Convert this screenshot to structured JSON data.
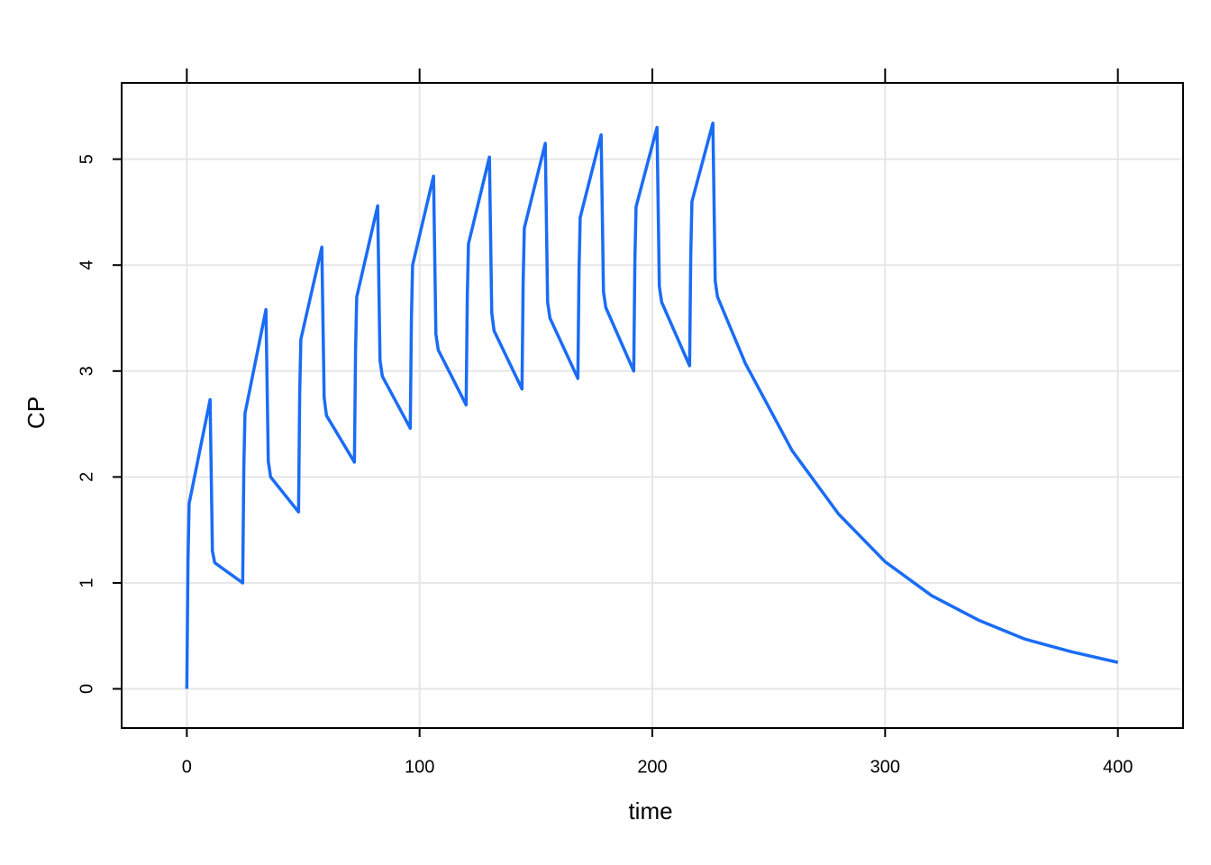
{
  "chart_data": {
    "type": "line",
    "x_label": "time",
    "y_label": "CP",
    "x": [
      0,
      0.5,
      1,
      10,
      11,
      12,
      24,
      24.5,
      25,
      34,
      35,
      36,
      48,
      48.5,
      49,
      58,
      59,
      60,
      72,
      72.5,
      73,
      82,
      83,
      84,
      96,
      96.5,
      97,
      106,
      107,
      108,
      120,
      120.5,
      121,
      130,
      131,
      132,
      144,
      144.5,
      145,
      154,
      155,
      156,
      168,
      168.5,
      169,
      178,
      179,
      180,
      192,
      192.5,
      193,
      202,
      203,
      204,
      216,
      216.5,
      217,
      226,
      227,
      228,
      240,
      260,
      280,
      300,
      320,
      340,
      360,
      380,
      400
    ],
    "values": [
      0,
      1.2,
      1.75,
      2.73,
      1.3,
      1.19,
      1.0,
      2.1,
      2.6,
      3.58,
      2.15,
      2.0,
      1.67,
      2.8,
      3.3,
      4.17,
      2.75,
      2.58,
      2.14,
      3.2,
      3.7,
      4.56,
      3.1,
      2.95,
      2.46,
      3.5,
      4.0,
      4.84,
      3.35,
      3.2,
      2.68,
      3.7,
      4.2,
      5.02,
      3.55,
      3.38,
      2.83,
      3.85,
      4.35,
      5.15,
      3.65,
      3.5,
      2.93,
      3.95,
      4.45,
      5.23,
      3.75,
      3.6,
      3.0,
      4.05,
      4.55,
      5.3,
      3.8,
      3.65,
      3.05,
      4.1,
      4.6,
      5.34,
      3.85,
      3.7,
      3.07,
      2.25,
      1.65,
      1.2,
      0.88,
      0.65,
      0.47,
      0.35,
      0.25
    ],
    "color": "#1a6cf5",
    "xlim": [
      -28,
      428
    ],
    "ylim": [
      -0.37,
      5.72
    ],
    "xticks": [
      0,
      100,
      200,
      300,
      400
    ],
    "yticks": [
      0,
      1,
      2,
      3,
      4,
      5
    ],
    "grid": true
  }
}
